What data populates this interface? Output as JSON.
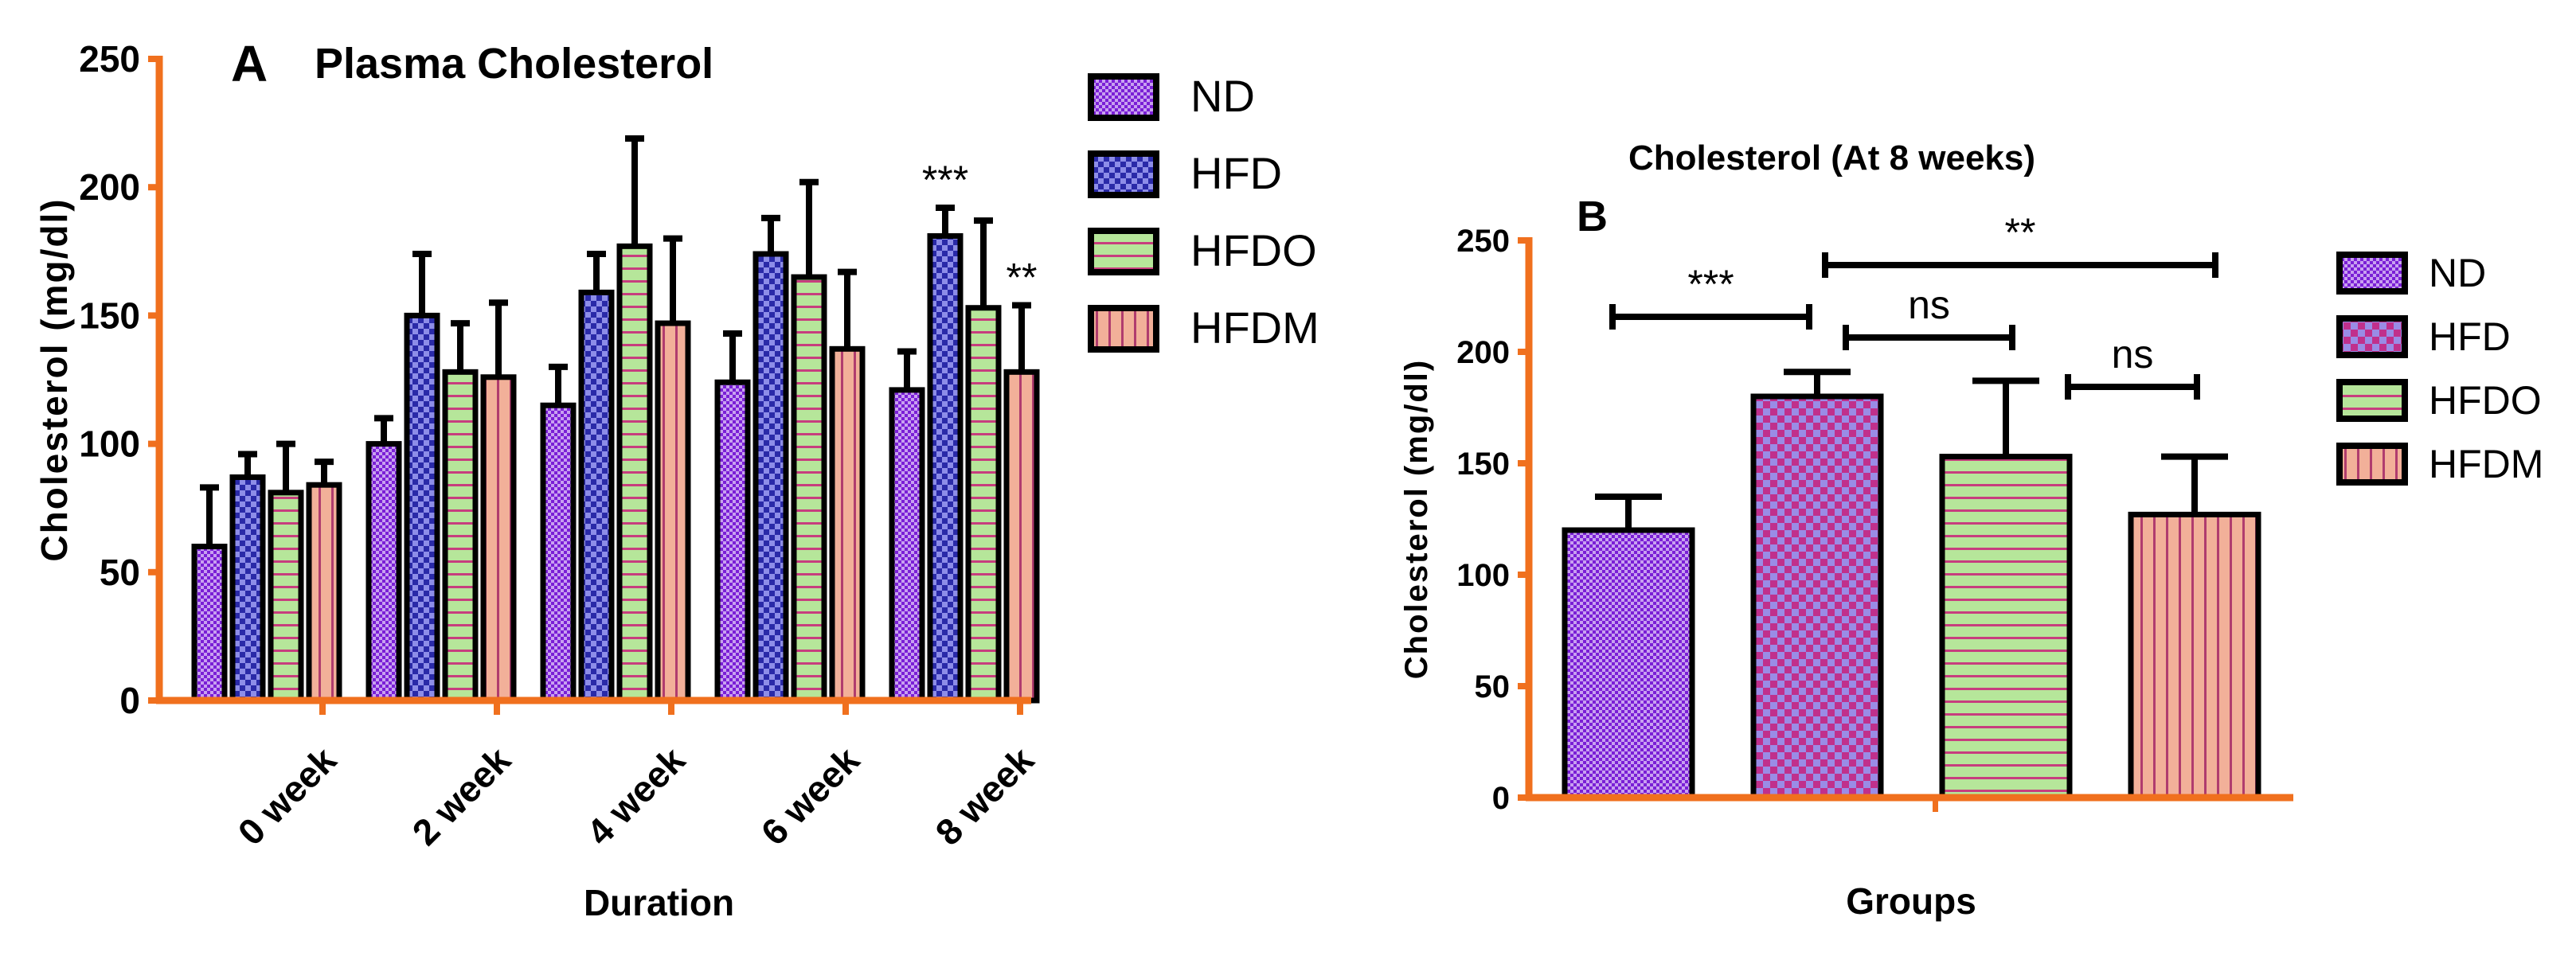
{
  "colors": {
    "axis": "#F0701E",
    "outline": "#000000",
    "nd_fill": "#C8A0F0",
    "nd_dot": "#7A1FD6",
    "hfd_fill": "#8D8DE8",
    "hfd_dot": "#2A2AA8",
    "hfd_b_fill": "#9A8CE6",
    "hfd_b_check": "#C0308C",
    "hfdo_fill": "#B6E69A",
    "hfdo_line": "#C73E7E",
    "hfdm_fill": "#F2B099",
    "hfdm_line": "#B03C6E"
  },
  "chart_data": [
    {
      "type": "bar",
      "panel_letter": "A",
      "title": "Plasma Cholesterol",
      "xlabel": "Duration",
      "ylabel": "Cholesterol (mg/dl)",
      "ylim": [
        0,
        250
      ],
      "yticks": [
        "0",
        "50",
        "100",
        "150",
        "200",
        "250"
      ],
      "categories": [
        "0 week",
        "2 week",
        "4 week",
        "6 week",
        "8 week"
      ],
      "legend": [
        "ND",
        "HFD",
        "HFDO",
        "HFDM"
      ],
      "series": [
        {
          "name": "ND",
          "values": [
            60,
            100,
            115,
            124,
            121
          ],
          "errors": [
            23,
            10,
            15,
            19,
            15
          ]
        },
        {
          "name": "HFD",
          "values": [
            87,
            150,
            159,
            174,
            181
          ],
          "errors": [
            9,
            24,
            15,
            14,
            11
          ]
        },
        {
          "name": "HFDO",
          "values": [
            81,
            128,
            177,
            165,
            153
          ],
          "errors": [
            19,
            19,
            42,
            37,
            34
          ]
        },
        {
          "name": "HFDM",
          "values": [
            84,
            126,
            147,
            137,
            128
          ],
          "errors": [
            9,
            29,
            33,
            30,
            26
          ]
        }
      ],
      "annotations": [
        {
          "category": "8 week",
          "series": "HFD",
          "label": "***"
        },
        {
          "category": "8 week",
          "series": "HFDM",
          "label": "**"
        }
      ]
    },
    {
      "type": "bar",
      "panel_letter": "B",
      "title": "Cholesterol (At 8 weeks)",
      "xlabel": "Groups",
      "ylabel": "Cholesterol (mg/dl)",
      "ylim": [
        0,
        250
      ],
      "yticks": [
        "0",
        "50",
        "100",
        "150",
        "200",
        "250"
      ],
      "categories": [
        "ND",
        "HFD",
        "HFDO",
        "HFDM"
      ],
      "legend": [
        "ND",
        "HFD",
        "HFDO",
        "HFDM"
      ],
      "values": [
        120,
        180,
        153,
        127
      ],
      "errors": [
        15,
        11,
        34,
        26
      ],
      "comparisons": [
        {
          "from": "ND",
          "to": "HFD",
          "label": "***"
        },
        {
          "from": "HFD",
          "to": "HFDM",
          "label": "**"
        },
        {
          "from": "HFD",
          "to": "HFDO",
          "label": "ns"
        },
        {
          "from": "HFDO",
          "to": "HFDM",
          "label": "ns"
        }
      ]
    }
  ]
}
